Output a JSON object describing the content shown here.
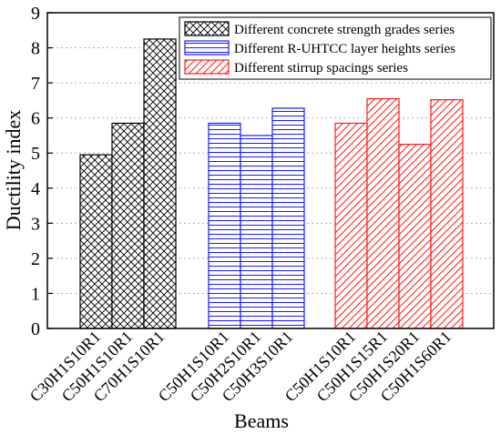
{
  "chart_data": {
    "type": "bar",
    "xlabel": "Beams",
    "ylabel": "Ductility index",
    "ylim": [
      0,
      9
    ],
    "yticks": [
      "0",
      "1",
      "2",
      "3",
      "4",
      "5",
      "6",
      "7",
      "8",
      "9"
    ],
    "grid": "horizontal dotted",
    "legend_position": "top-right",
    "series": [
      {
        "name": "Different concrete strength grades series",
        "color": "#000000",
        "pattern": "crosshatch",
        "categories": [
          "C30H1S10R1",
          "C50H1S10R1",
          "C70H1S10R1"
        ],
        "values": [
          4.95,
          5.85,
          8.25
        ]
      },
      {
        "name": "Different R-UHTCC layer heights series",
        "color": "#1a1aff",
        "pattern": "horizontal-lines",
        "categories": [
          "C50H1S10R1",
          "C50H2S10R1",
          "C50H3S10R1"
        ],
        "values": [
          5.85,
          5.5,
          6.28
        ]
      },
      {
        "name": "Different stirrup spacings series",
        "color": "#ff1a1a",
        "pattern": "diagonal-lines",
        "categories": [
          "C50H1S10R1",
          "C50H1S15R1",
          "C50H1S20R1",
          "C50H1S60R1"
        ],
        "values": [
          5.85,
          6.55,
          5.25,
          6.52
        ]
      }
    ]
  }
}
